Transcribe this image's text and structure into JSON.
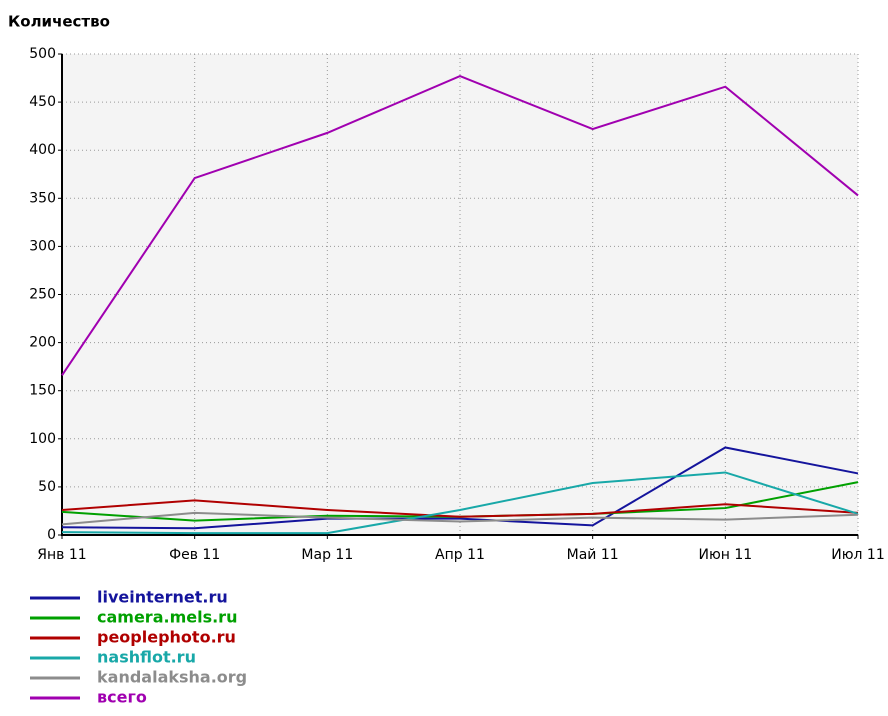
{
  "chart_data": {
    "type": "line",
    "y_axis_label": "Количество",
    "categories": [
      "Янв 11",
      "Фев 11",
      "Мар 11",
      "Апр 11",
      "Май 11",
      "Июн 11",
      "Июл 11"
    ],
    "ylim": [
      0,
      500
    ],
    "yticks": [
      0,
      50,
      100,
      150,
      200,
      250,
      300,
      350,
      400,
      450,
      500
    ],
    "grid": true,
    "series": [
      {
        "name": "liveinternet.ru",
        "color": "#14149c",
        "values": [
          8,
          7,
          17,
          17,
          10,
          91,
          64
        ]
      },
      {
        "name": "camera.mels.ru",
        "color": "#00a000",
        "values": [
          24,
          15,
          20,
          19,
          22,
          28,
          55
        ]
      },
      {
        "name": "peoplephoto.ru",
        "color": "#b00000",
        "values": [
          26,
          36,
          26,
          19,
          22,
          32,
          23
        ]
      },
      {
        "name": "nashflot.ru",
        "color": "#18a8a8",
        "values": [
          3,
          2,
          2,
          26,
          54,
          65,
          22
        ]
      },
      {
        "name": "kandalaksha.org",
        "color": "#8c8c8c",
        "values": [
          11,
          23,
          18,
          14,
          18,
          16,
          21
        ]
      },
      {
        "name": "всего",
        "color": "#a000b0",
        "values": [
          166,
          371,
          418,
          477,
          422,
          466,
          353
        ]
      }
    ]
  }
}
